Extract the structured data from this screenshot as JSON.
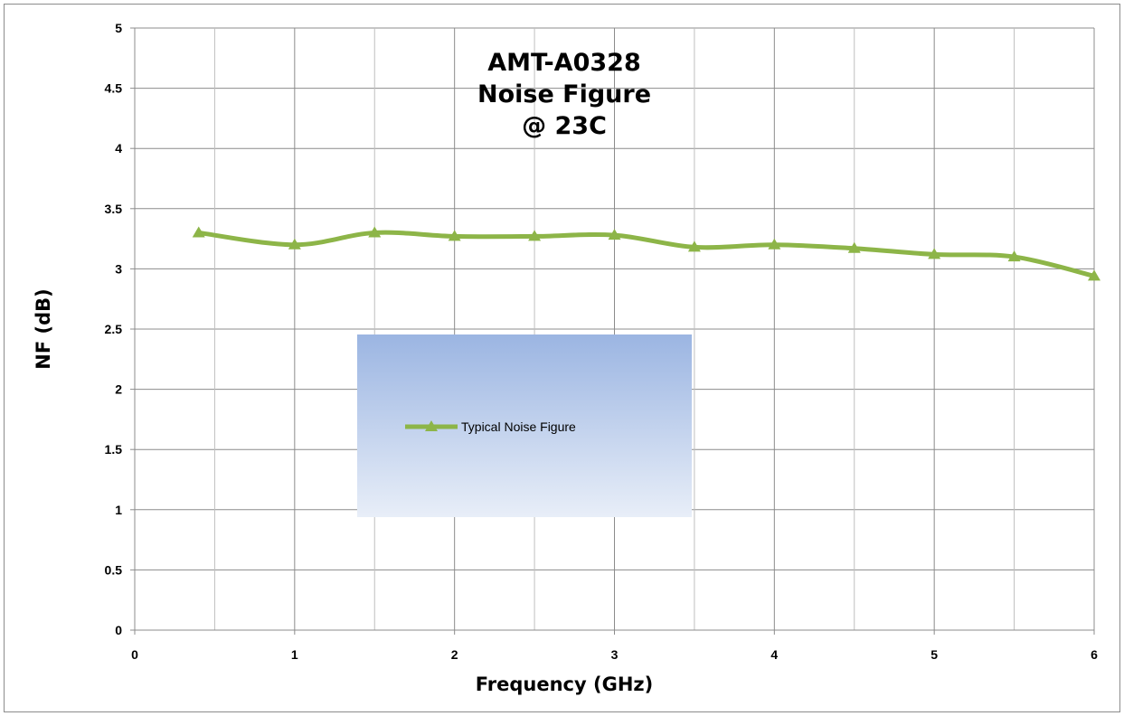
{
  "chart_data": {
    "type": "line",
    "title_lines": [
      "AMT-A0328",
      "Noise Figure",
      "@ 23C"
    ],
    "xlabel": "Frequency (GHz)",
    "ylabel": "NF (dB)",
    "xlim": [
      0,
      6
    ],
    "ylim": [
      0,
      5
    ],
    "x_ticks": [
      "0",
      "1",
      "2",
      "3",
      "4",
      "5",
      "6"
    ],
    "y_ticks": [
      "0",
      "0.5",
      "1",
      "1.5",
      "2",
      "2.5",
      "3",
      "3.5",
      "4",
      "4.5",
      "5"
    ],
    "x_grid_minor": [
      0.5,
      1.5,
      2.5,
      3.5,
      4.5,
      5.5
    ],
    "grid": true,
    "legend_position": "center-left",
    "series": [
      {
        "name": "Typical Noise Figure",
        "color": "#8db548",
        "marker": "triangle",
        "smooth": true,
        "x": [
          0.4,
          1.0,
          1.5,
          2.0,
          2.5,
          3.0,
          3.5,
          4.0,
          4.5,
          5.0,
          5.5,
          6.0
        ],
        "y": [
          3.3,
          3.2,
          3.3,
          3.27,
          3.27,
          3.28,
          3.18,
          3.2,
          3.17,
          3.12,
          3.1,
          2.94
        ]
      }
    ]
  }
}
